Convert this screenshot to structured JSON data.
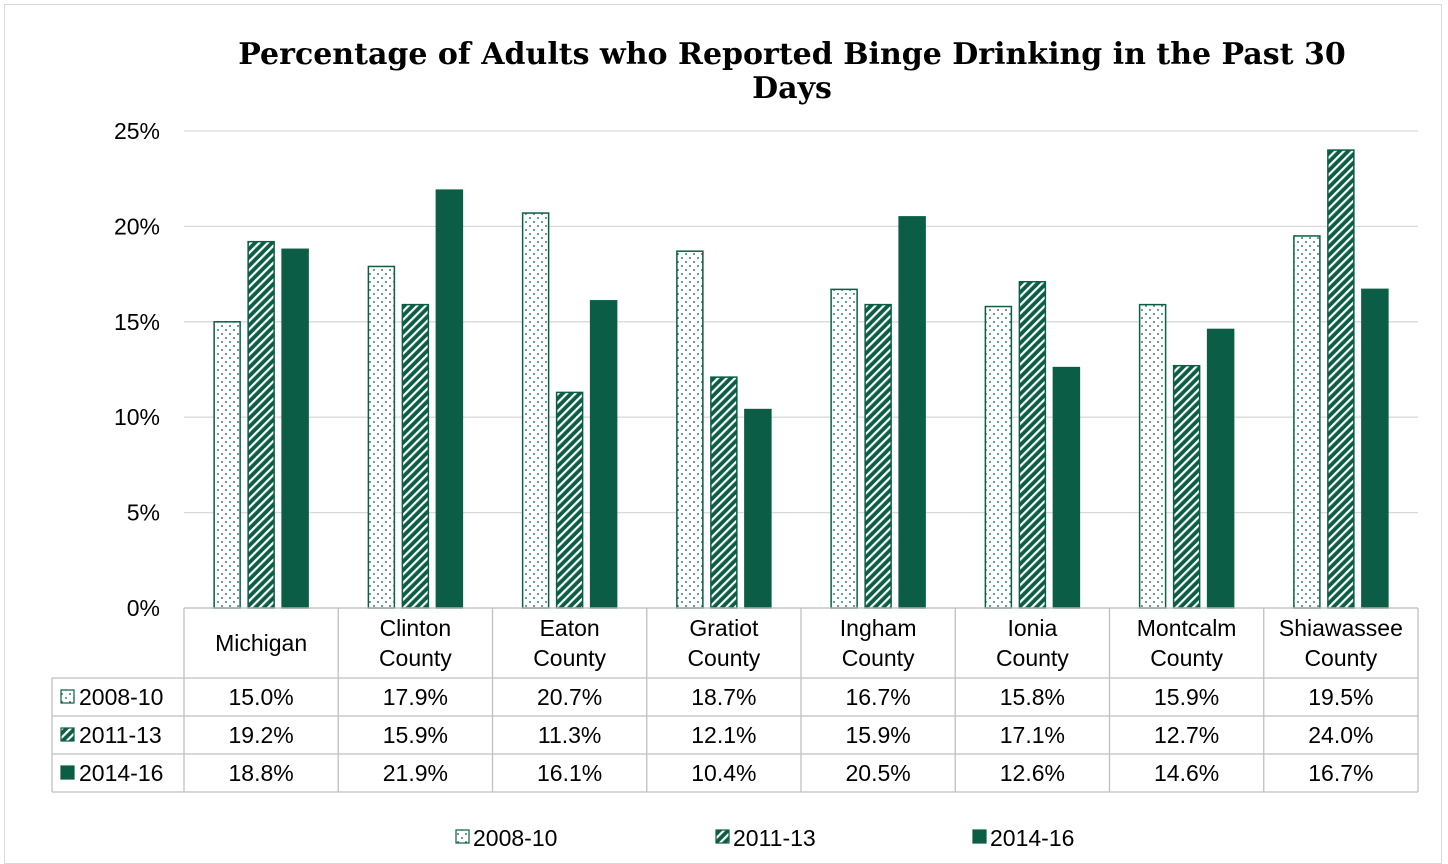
{
  "chart_data": {
    "type": "bar",
    "title": "Percentage of Adults who Reported Binge Drinking in the Past 30 Days",
    "title_lines": [
      "Percentage of Adults who Reported Binge Drinking in the Past 30",
      "Days"
    ],
    "categories": [
      "Michigan",
      "Clinton County",
      "Eaton County",
      "Gratiot County",
      "Ingham County",
      "Ionia County",
      "Montcalm County",
      "Shiawassee County"
    ],
    "category_lines": [
      [
        "Michigan"
      ],
      [
        "Clinton",
        "County"
      ],
      [
        "Eaton",
        "County"
      ],
      [
        "Gratiot",
        "County"
      ],
      [
        "Ingham",
        "County"
      ],
      [
        "Ionia",
        "County"
      ],
      [
        "Montcalm",
        "County"
      ],
      [
        "Shiawassee",
        "County"
      ]
    ],
    "series": [
      {
        "name": "2008-10",
        "values": [
          15.0,
          17.9,
          20.7,
          18.7,
          16.7,
          15.8,
          15.9,
          19.5
        ],
        "labels": [
          "15.0%",
          "17.9%",
          "20.7%",
          "18.7%",
          "16.7%",
          "15.8%",
          "15.9%",
          "19.5%"
        ],
        "pattern": "dotted"
      },
      {
        "name": "2011-13",
        "values": [
          19.2,
          15.9,
          11.3,
          12.1,
          15.9,
          17.1,
          12.7,
          24.0
        ],
        "labels": [
          "19.2%",
          "15.9%",
          "11.3%",
          "12.1%",
          "15.9%",
          "17.1%",
          "12.7%",
          "24.0%"
        ],
        "pattern": "hatched"
      },
      {
        "name": "2014-16",
        "values": [
          18.8,
          21.9,
          16.1,
          10.4,
          20.5,
          12.6,
          14.6,
          16.7
        ],
        "labels": [
          "18.8%",
          "21.9%",
          "16.1%",
          "10.4%",
          "20.5%",
          "12.6%",
          "14.6%",
          "16.7%"
        ],
        "pattern": "solid"
      }
    ],
    "ylim": [
      0,
      25
    ],
    "yticks": [
      "0%",
      "5%",
      "10%",
      "15%",
      "20%",
      "25%"
    ],
    "xlabel": "",
    "ylabel": "",
    "grid": true,
    "legend_position": "bottom",
    "data_table": true,
    "colors": {
      "bar": "#0b5e45",
      "grid": "#d9d9d9",
      "table_border": "#bfbfbf"
    }
  }
}
